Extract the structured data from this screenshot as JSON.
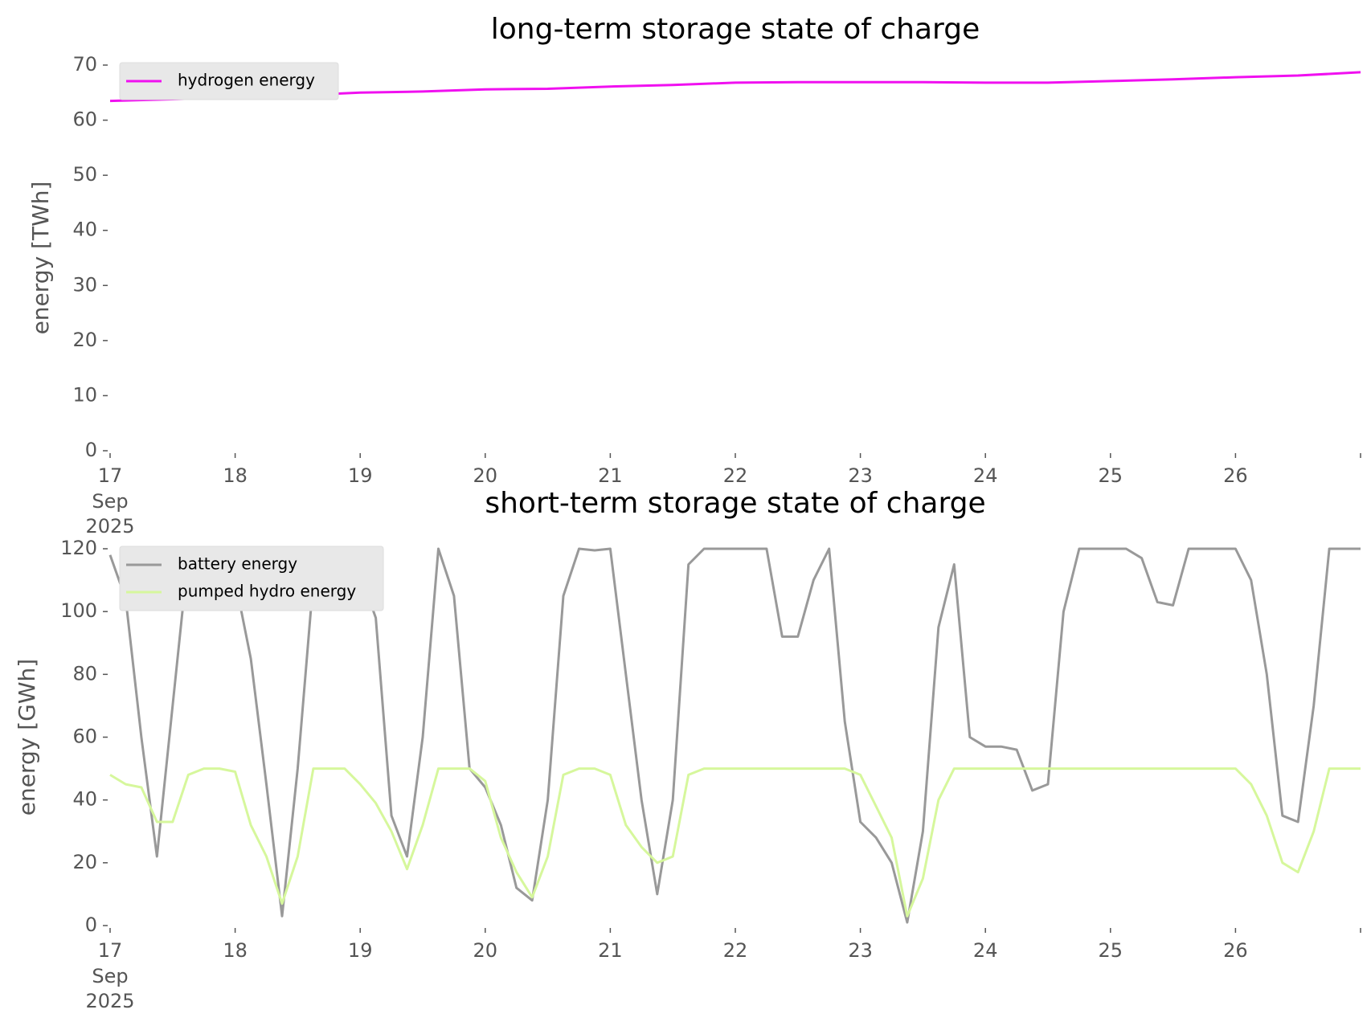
{
  "chart_data": [
    {
      "type": "line",
      "title": "long-term storage state of charge",
      "ylabel": "energy [TWh]",
      "x": [
        17,
        17.5,
        18,
        18.5,
        19,
        19.5,
        20,
        20.5,
        21,
        21.5,
        22,
        22.5,
        23,
        23.5,
        24,
        24.5,
        25,
        25.5,
        26,
        26.5,
        27
      ],
      "series": [
        {
          "name": "hydrogen energy",
          "color": "#f010f0",
          "values": [
            63.5,
            63.8,
            64.2,
            64.5,
            65.0,
            65.2,
            65.6,
            65.7,
            66.1,
            66.4,
            66.8,
            66.9,
            66.9,
            66.9,
            66.8,
            66.8,
            67.1,
            67.4,
            67.8,
            68.1,
            68.7
          ]
        }
      ],
      "xlim": [
        17,
        27
      ],
      "xticks": [
        17,
        18,
        19,
        20,
        21,
        22,
        23,
        24,
        25,
        26,
        {
          "value": 27,
          "label": null
        }
      ],
      "xtick_sublabels": [
        "Sep",
        "2025"
      ],
      "ylim": [
        0,
        70
      ],
      "yticks": [
        0,
        10,
        20,
        30,
        40,
        50,
        60,
        70
      ],
      "legend": "upper left",
      "grid": false
    },
    {
      "type": "line",
      "title": "short-term storage state of charge",
      "ylabel": "energy [GWh]",
      "x": [
        17,
        17.125,
        17.25,
        17.375,
        17.5,
        17.625,
        17.75,
        17.875,
        18,
        18.125,
        18.25,
        18.375,
        18.5,
        18.625,
        18.75,
        18.875,
        19,
        19.125,
        19.25,
        19.375,
        19.5,
        19.625,
        19.75,
        19.875,
        20,
        20.125,
        20.25,
        20.375,
        20.5,
        20.625,
        20.75,
        20.875,
        21,
        21.125,
        21.25,
        21.375,
        21.5,
        21.625,
        21.75,
        21.875,
        22,
        22.125,
        22.25,
        22.375,
        22.5,
        22.625,
        22.75,
        22.875,
        23,
        23.125,
        23.25,
        23.375,
        23.5,
        23.625,
        23.75,
        23.875,
        24,
        24.125,
        24.25,
        24.375,
        24.5,
        24.625,
        24.75,
        24.875,
        25,
        25.125,
        25.25,
        25.375,
        25.5,
        25.625,
        25.75,
        25.875,
        26,
        26.125,
        26.25,
        26.375,
        26.5,
        26.625,
        26.75,
        26.875,
        27
      ],
      "series": [
        {
          "name": "battery energy",
          "color": "#999999",
          "values": [
            118,
            104,
            60,
            22,
            70,
            118,
            120,
            120,
            110,
            85,
            45,
            3,
            50,
            110,
            120,
            120,
            112,
            98,
            35,
            22,
            60,
            120,
            105,
            50,
            44,
            32,
            12,
            8,
            40,
            105,
            120,
            119.5,
            120,
            80,
            40,
            10,
            40,
            115,
            120,
            120,
            120,
            120,
            120,
            92,
            92,
            110,
            120,
            65,
            33,
            28,
            20,
            1,
            30,
            95,
            115,
            60,
            57,
            57,
            56,
            43,
            45,
            100,
            120,
            120,
            120,
            120,
            117,
            103,
            102,
            120,
            120,
            120,
            120,
            110,
            80,
            35,
            33,
            70,
            120,
            120,
            120
          ]
        },
        {
          "name": "pumped hydro energy",
          "color": "#d6f79c",
          "values": [
            48,
            45,
            44,
            33,
            33,
            48,
            50,
            50,
            49,
            32,
            22,
            7,
            22,
            50,
            50,
            50,
            45,
            39,
            30,
            18,
            32,
            50,
            50,
            50,
            46,
            28,
            17,
            9,
            22,
            48,
            50,
            50,
            48,
            32,
            25,
            20,
            22,
            48,
            50,
            50,
            50,
            50,
            50,
            50,
            50,
            50,
            50,
            50,
            48,
            38,
            28,
            3,
            15,
            40,
            50,
            50,
            50,
            50,
            50,
            50,
            50,
            50,
            50,
            50,
            50,
            50,
            50,
            50,
            50,
            50,
            50,
            50,
            50,
            45,
            35,
            20,
            17,
            30,
            50,
            50,
            50
          ]
        }
      ],
      "xlim": [
        17,
        27
      ],
      "xticks": [
        17,
        18,
        19,
        20,
        21,
        22,
        23,
        24,
        25,
        26,
        {
          "value": 27,
          "label": null
        }
      ],
      "xtick_sublabels": [
        "Sep",
        "2025"
      ],
      "ylim": [
        0,
        120
      ],
      "yticks": [
        0,
        20,
        40,
        60,
        80,
        100,
        120
      ],
      "legend": "upper left",
      "grid": false
    }
  ]
}
